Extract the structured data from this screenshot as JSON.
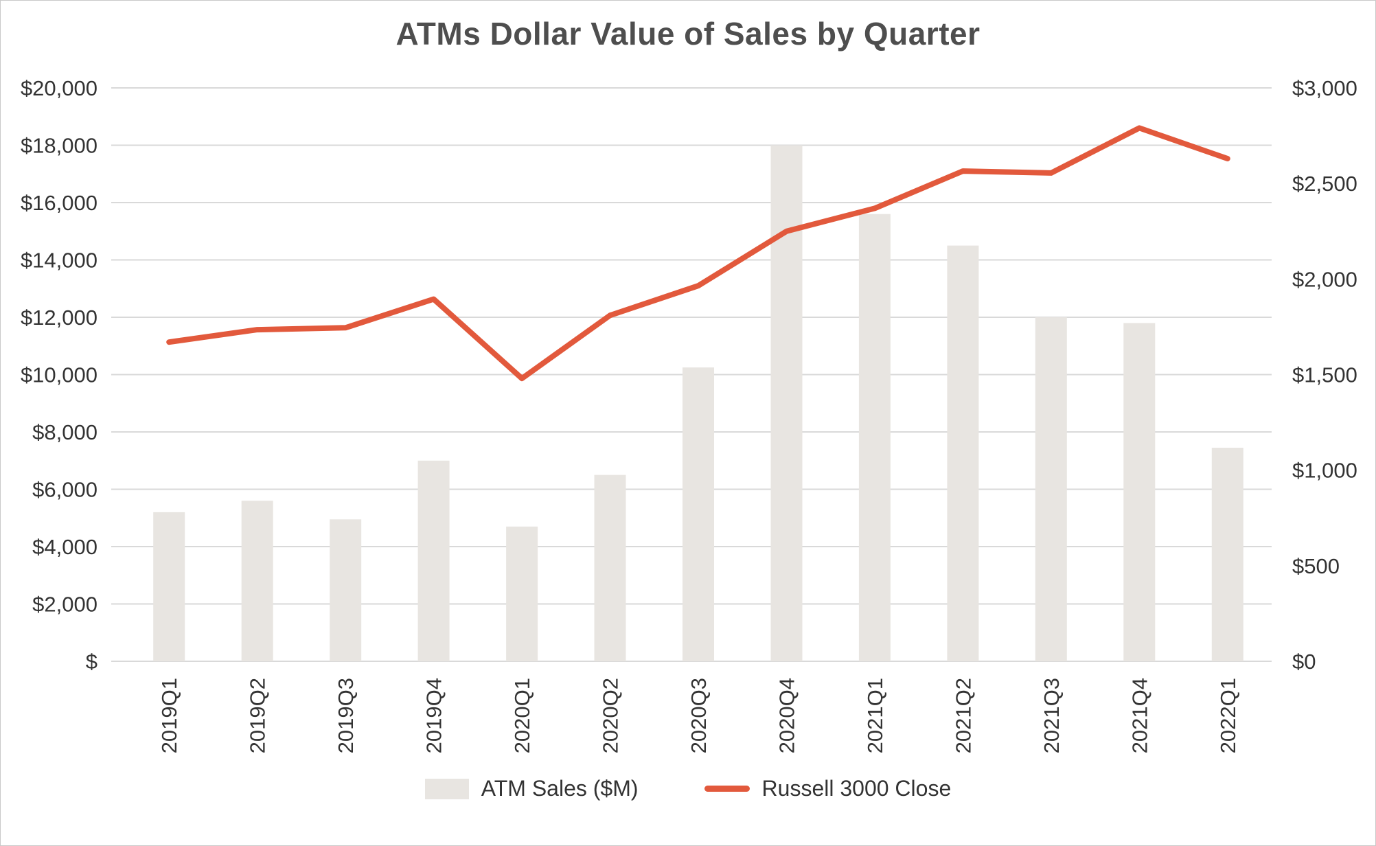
{
  "chart_data": {
    "type": "bar",
    "subtype": "combo-bar-line",
    "title": "ATMs Dollar Value of Sales by Quarter",
    "categories": [
      "2019Q1",
      "2019Q2",
      "2019Q3",
      "2019Q4",
      "2020Q1",
      "2020Q2",
      "2020Q3",
      "2020Q4",
      "2021Q1",
      "2021Q2",
      "2021Q3",
      "2021Q4",
      "2022Q1"
    ],
    "series": [
      {
        "name": "ATM Sales ($M)",
        "type": "bar",
        "axis": "left",
        "color": "#e8e5e1",
        "values": [
          5200,
          5600,
          4950,
          7000,
          4700,
          6500,
          10250,
          18000,
          15600,
          14500,
          12000,
          11800,
          7450
        ]
      },
      {
        "name": "Russell 3000 Close",
        "type": "line",
        "axis": "right",
        "color": "#e2593c",
        "values": [
          1670,
          1735,
          1745,
          1895,
          1480,
          1810,
          1965,
          2250,
          2370,
          2565,
          2555,
          2790,
          2630
        ]
      }
    ],
    "left_axis": {
      "min": 0,
      "max": 20000,
      "step": 2000,
      "ticks": [
        {
          "value": 0,
          "label": "$"
        },
        {
          "value": 2000,
          "label": "$2,000"
        },
        {
          "value": 4000,
          "label": "$4,000"
        },
        {
          "value": 6000,
          "label": "$6,000"
        },
        {
          "value": 8000,
          "label": "$8,000"
        },
        {
          "value": 10000,
          "label": "$10,000"
        },
        {
          "value": 12000,
          "label": "$12,000"
        },
        {
          "value": 14000,
          "label": "$14,000"
        },
        {
          "value": 16000,
          "label": "$16,000"
        },
        {
          "value": 18000,
          "label": "$18,000"
        },
        {
          "value": 20000,
          "label": "$20,000"
        }
      ]
    },
    "right_axis": {
      "min": 0,
      "max": 3000,
      "step": 500,
      "ticks": [
        {
          "value": 0,
          "label": "$0"
        },
        {
          "value": 500,
          "label": "$500"
        },
        {
          "value": 1000,
          "label": "$1,000"
        },
        {
          "value": 1500,
          "label": "$1,500"
        },
        {
          "value": 2000,
          "label": "$2,000"
        },
        {
          "value": 2500,
          "label": "$2,500"
        },
        {
          "value": 3000,
          "label": "$3,000"
        }
      ]
    },
    "grid": true,
    "legend_position": "bottom",
    "colors": {
      "grid": "#d9d9d9",
      "bar": "#e8e5e1",
      "line": "#e2593c",
      "title_text": "#4e4e4e",
      "axis_text": "#333333",
      "border": "#c9c9c9"
    }
  }
}
